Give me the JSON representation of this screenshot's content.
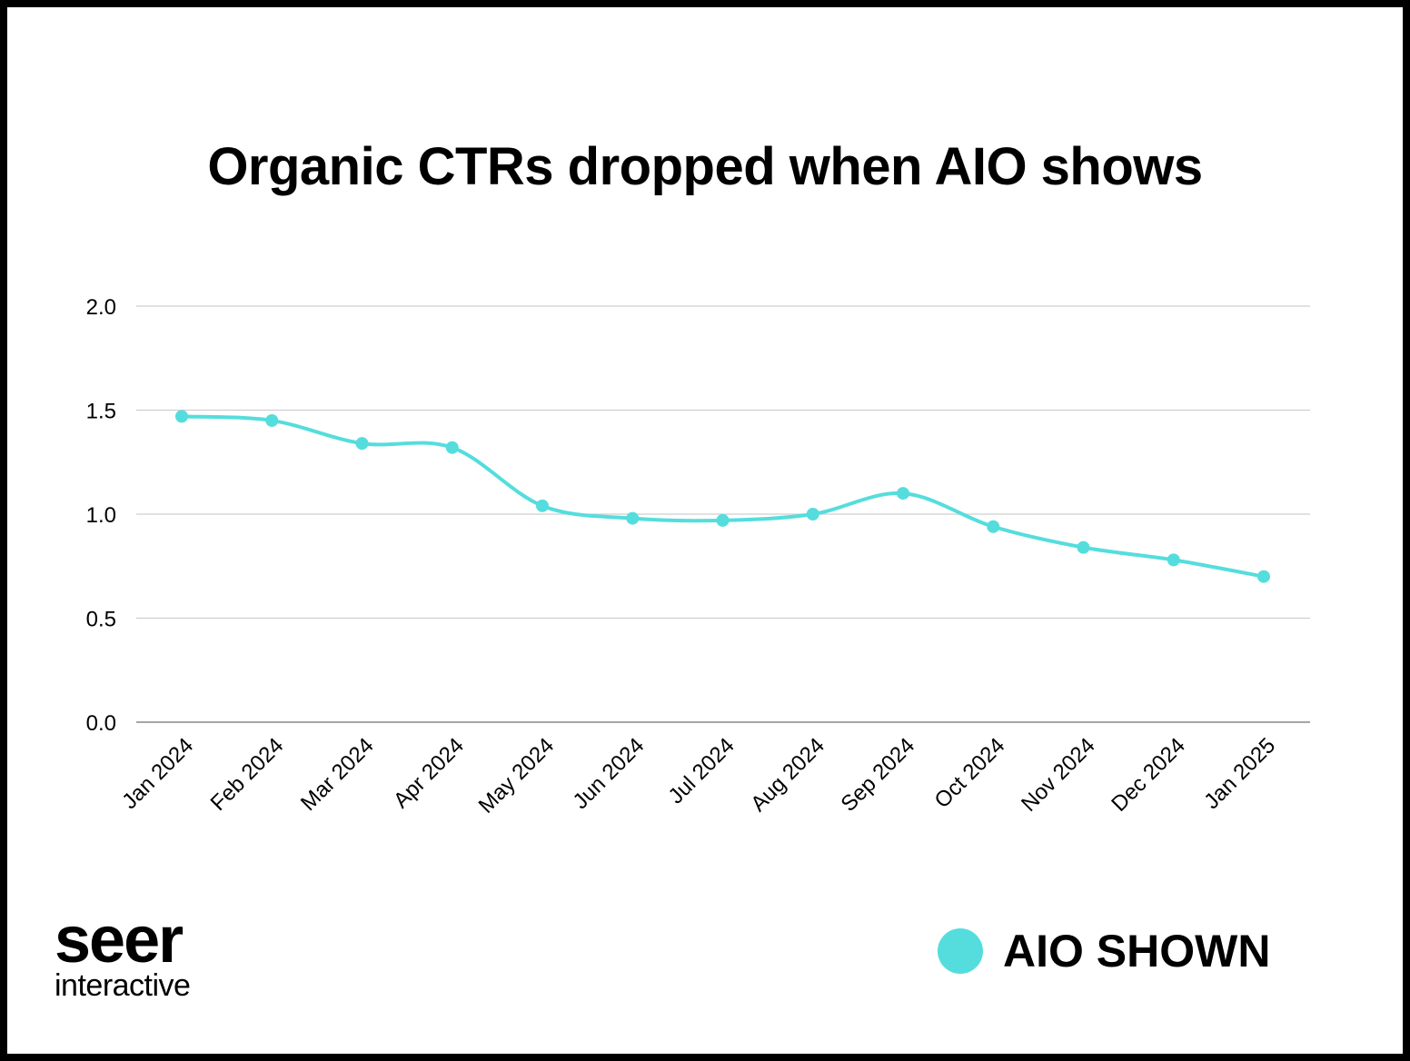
{
  "chart_data": {
    "type": "line",
    "title": "Organic CTRs dropped when AIO shows",
    "xlabel": "",
    "ylabel": "",
    "categories": [
      "Jan 2024",
      "Feb 2024",
      "Mar 2024",
      "Apr 2024",
      "May 2024",
      "Jun 2024",
      "Jul 2024",
      "Aug 2024",
      "Sep 2024",
      "Oct 2024",
      "Nov 2024",
      "Dec 2024",
      "Jan 2025"
    ],
    "series": [
      {
        "name": "AIO SHOWN",
        "color": "#55DDDD",
        "values": [
          1.47,
          1.45,
          1.34,
          1.32,
          1.04,
          0.98,
          0.97,
          1.0,
          1.1,
          0.94,
          0.84,
          0.78,
          0.7
        ]
      }
    ],
    "ylim": [
      0,
      2.0
    ],
    "yticks": [
      "0.0",
      "0.5",
      "1.0",
      "1.5",
      "2.0"
    ],
    "ytick_values": [
      0,
      0.5,
      1.0,
      1.5,
      2.0
    ],
    "grid": true,
    "smooth": true,
    "legend_position": "bottom-right"
  },
  "logo": {
    "line1": "seer",
    "line2": "interactive"
  }
}
